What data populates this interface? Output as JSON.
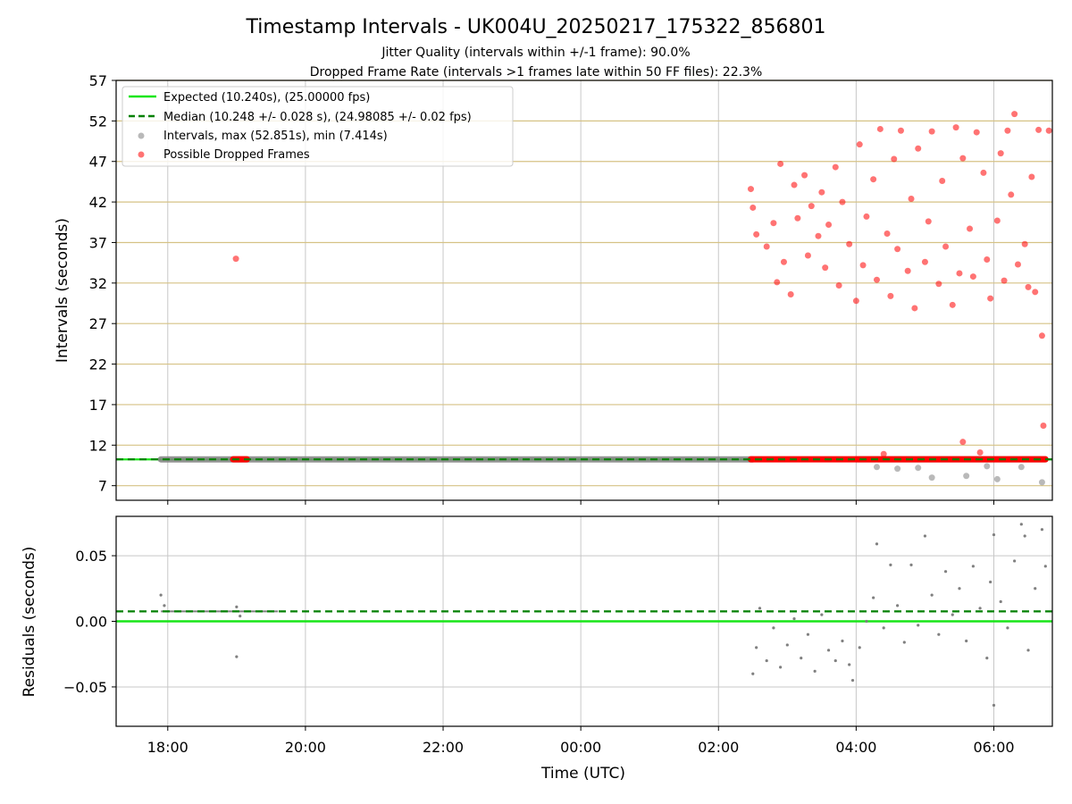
{
  "colors": {
    "expected": "#19e619",
    "median": "#008000",
    "intervals": "#808080",
    "dropped": "#ff0000",
    "hgrid_top": "#d6c285",
    "grid": "#c8c8c8"
  },
  "chart_data": [
    {
      "type": "scatter",
      "title": "Timestamp Intervals - UK004U_20250217_175322_856801",
      "subtitle_1": "Jitter Quality (intervals within +/-1 frame): 90.0%",
      "subtitle_2": "Dropped Frame Rate (intervals >1 frames late within 50 FF files): 22.3%",
      "xlabel": "",
      "ylabel": "Intervals (seconds)",
      "x_unit": "hours since 00:00 UTC of 2025-02-18 (negative = 2025-02-17)",
      "xlim": [
        -6.75,
        6.85
      ],
      "ylim": [
        5.2,
        57
      ],
      "yticks": [
        7,
        12,
        17,
        22,
        27,
        32,
        37,
        42,
        47,
        52,
        57
      ],
      "ytick_labels": [
        "7",
        "12",
        "17",
        "22",
        "27",
        "32",
        "37",
        "42",
        "47",
        "52",
        "57"
      ],
      "xticks": [
        -6,
        -4,
        -2,
        0,
        2,
        4,
        6
      ],
      "grid": true,
      "legend_position": "top-left",
      "legend": [
        "Expected (10.240s), (25.00000 fps)",
        "Median (10.248 +/- 0.028 s), (24.98085 +/- 0.02 fps)",
        "Intervals, max (52.851s), min (7.414s)",
        "Possible Dropped Frames"
      ],
      "lines": {
        "expected": 10.24,
        "median": 10.248
      },
      "series": [
        {
          "name": "Intervals, max (52.851s), min (7.414s)",
          "segments": [
            {
              "x_start": -6.1,
              "x_end": 2.5,
              "y": 10.248
            },
            {
              "x_start": 4.0,
              "x_end": 6.75,
              "y": 10.25
            }
          ],
          "points": [
            {
              "x": 4.3,
              "y": 9.3
            },
            {
              "x": 4.6,
              "y": 9.1
            },
            {
              "x": 4.9,
              "y": 9.2
            },
            {
              "x": 5.1,
              "y": 8.0
            },
            {
              "x": 5.6,
              "y": 8.2
            },
            {
              "x": 6.05,
              "y": 7.8
            },
            {
              "x": 6.7,
              "y": 7.414
            },
            {
              "x": 5.9,
              "y": 9.4
            },
            {
              "x": 6.4,
              "y": 9.3
            }
          ]
        },
        {
          "name": "Possible Dropped Frames",
          "points": [
            {
              "x": -5.01,
              "y": 35.0
            },
            {
              "x": 2.47,
              "y": 43.6
            },
            {
              "x": 2.5,
              "y": 41.3
            },
            {
              "x": 2.55,
              "y": 38.0
            },
            {
              "x": 2.7,
              "y": 36.5
            },
            {
              "x": 2.8,
              "y": 39.4
            },
            {
              "x": 2.85,
              "y": 32.1
            },
            {
              "x": 2.9,
              "y": 46.7
            },
            {
              "x": 2.95,
              "y": 34.6
            },
            {
              "x": 3.05,
              "y": 30.6
            },
            {
              "x": 3.1,
              "y": 44.1
            },
            {
              "x": 3.15,
              "y": 40.0
            },
            {
              "x": 3.25,
              "y": 45.3
            },
            {
              "x": 3.3,
              "y": 35.4
            },
            {
              "x": 3.35,
              "y": 41.5
            },
            {
              "x": 3.45,
              "y": 37.8
            },
            {
              "x": 3.5,
              "y": 43.2
            },
            {
              "x": 3.55,
              "y": 33.9
            },
            {
              "x": 3.6,
              "y": 39.2
            },
            {
              "x": 3.7,
              "y": 46.3
            },
            {
              "x": 3.75,
              "y": 31.7
            },
            {
              "x": 3.8,
              "y": 42.0
            },
            {
              "x": 3.9,
              "y": 36.8
            },
            {
              "x": 4.0,
              "y": 29.8
            },
            {
              "x": 4.05,
              "y": 49.1
            },
            {
              "x": 4.1,
              "y": 34.2
            },
            {
              "x": 4.15,
              "y": 40.2
            },
            {
              "x": 4.25,
              "y": 44.8
            },
            {
              "x": 4.3,
              "y": 32.4
            },
            {
              "x": 4.35,
              "y": 51.0
            },
            {
              "x": 4.45,
              "y": 38.1
            },
            {
              "x": 4.5,
              "y": 30.4
            },
            {
              "x": 4.55,
              "y": 47.3
            },
            {
              "x": 4.6,
              "y": 36.2
            },
            {
              "x": 4.65,
              "y": 50.8
            },
            {
              "x": 4.75,
              "y": 33.5
            },
            {
              "x": 4.8,
              "y": 42.4
            },
            {
              "x": 4.85,
              "y": 28.9
            },
            {
              "x": 4.9,
              "y": 48.6
            },
            {
              "x": 5.0,
              "y": 34.6
            },
            {
              "x": 5.05,
              "y": 39.6
            },
            {
              "x": 5.1,
              "y": 50.7
            },
            {
              "x": 5.2,
              "y": 31.9
            },
            {
              "x": 5.25,
              "y": 44.6
            },
            {
              "x": 5.3,
              "y": 36.5
            },
            {
              "x": 5.4,
              "y": 29.3
            },
            {
              "x": 5.45,
              "y": 51.2
            },
            {
              "x": 5.5,
              "y": 33.2
            },
            {
              "x": 5.55,
              "y": 47.4
            },
            {
              "x": 5.65,
              "y": 38.7
            },
            {
              "x": 5.7,
              "y": 32.8
            },
            {
              "x": 5.75,
              "y": 50.6
            },
            {
              "x": 5.85,
              "y": 45.6
            },
            {
              "x": 5.9,
              "y": 34.9
            },
            {
              "x": 5.95,
              "y": 30.1
            },
            {
              "x": 6.05,
              "y": 39.7
            },
            {
              "x": 6.1,
              "y": 48.0
            },
            {
              "x": 6.15,
              "y": 32.3
            },
            {
              "x": 6.2,
              "y": 50.8
            },
            {
              "x": 6.25,
              "y": 42.9
            },
            {
              "x": 6.3,
              "y": 52.851
            },
            {
              "x": 6.35,
              "y": 34.3
            },
            {
              "x": 6.45,
              "y": 36.8
            },
            {
              "x": 6.5,
              "y": 31.5
            },
            {
              "x": 6.55,
              "y": 45.1
            },
            {
              "x": 6.6,
              "y": 30.9
            },
            {
              "x": 6.65,
              "y": 50.9
            },
            {
              "x": 6.7,
              "y": 25.5
            },
            {
              "x": 6.72,
              "y": 14.4
            },
            {
              "x": 6.8,
              "y": 50.8
            },
            {
              "x": 5.55,
              "y": 12.4
            },
            {
              "x": 4.4,
              "y": 10.9
            },
            {
              "x": 5.8,
              "y": 11.1
            }
          ],
          "segments": [
            {
              "x_start": -5.05,
              "x_end": -4.85,
              "y": 10.25
            },
            {
              "x_start": 2.47,
              "x_end": 6.75,
              "y": 10.25
            }
          ]
        }
      ]
    },
    {
      "type": "scatter",
      "title": "",
      "xlabel": "Time (UTC)",
      "ylabel": "Residuals (seconds)",
      "xlim": [
        -6.75,
        6.85
      ],
      "ylim": [
        -0.08,
        0.08
      ],
      "yticks": [
        -0.05,
        0.0,
        0.05
      ],
      "ytick_labels": [
        "−0.05",
        "0.00",
        "0.05"
      ],
      "xticks": [
        -6,
        -4,
        -2,
        0,
        2,
        4,
        6
      ],
      "xtick_labels": [
        "18:00",
        "20:00",
        "22:00",
        "00:00",
        "02:00",
        "04:00",
        "06:00"
      ],
      "grid": true,
      "lines": {
        "expected": 0.0,
        "median": 0.0076
      },
      "series": [
        {
          "name": "Residuals",
          "segments": [
            {
              "x_start": -6.1,
              "x_end": -4.4,
              "y": 0.0076
            }
          ],
          "points": [
            {
              "x": -6.1,
              "y": 0.02
            },
            {
              "x": -6.05,
              "y": 0.012
            },
            {
              "x": -5.0,
              "y": -0.027
            },
            {
              "x": -4.95,
              "y": 0.004
            },
            {
              "x": -5.0,
              "y": 0.011
            },
            {
              "x": 2.5,
              "y": -0.04
            },
            {
              "x": 2.55,
              "y": -0.02
            },
            {
              "x": 2.6,
              "y": 0.01
            },
            {
              "x": 2.7,
              "y": -0.03
            },
            {
              "x": 2.8,
              "y": -0.005
            },
            {
              "x": 2.9,
              "y": -0.035
            },
            {
              "x": 3.0,
              "y": -0.018
            },
            {
              "x": 3.1,
              "y": 0.002
            },
            {
              "x": 3.2,
              "y": -0.028
            },
            {
              "x": 3.3,
              "y": -0.01
            },
            {
              "x": 3.4,
              "y": -0.038
            },
            {
              "x": 3.5,
              "y": 0.005
            },
            {
              "x": 3.6,
              "y": -0.022
            },
            {
              "x": 3.7,
              "y": -0.03
            },
            {
              "x": 3.8,
              "y": -0.015
            },
            {
              "x": 3.9,
              "y": -0.033
            },
            {
              "x": 3.95,
              "y": -0.045
            },
            {
              "x": 4.05,
              "y": -0.02
            },
            {
              "x": 4.15,
              "y": 0.0
            },
            {
              "x": 4.25,
              "y": 0.018
            },
            {
              "x": 4.3,
              "y": 0.059
            },
            {
              "x": 4.4,
              "y": -0.005
            },
            {
              "x": 4.5,
              "y": 0.043
            },
            {
              "x": 4.6,
              "y": 0.012
            },
            {
              "x": 4.7,
              "y": -0.016
            },
            {
              "x": 4.8,
              "y": 0.043
            },
            {
              "x": 4.9,
              "y": -0.003
            },
            {
              "x": 5.0,
              "y": 0.065
            },
            {
              "x": 5.1,
              "y": 0.02
            },
            {
              "x": 5.2,
              "y": -0.01
            },
            {
              "x": 5.3,
              "y": 0.038
            },
            {
              "x": 5.4,
              "y": 0.005
            },
            {
              "x": 5.5,
              "y": 0.025
            },
            {
              "x": 5.6,
              "y": -0.015
            },
            {
              "x": 5.7,
              "y": 0.042
            },
            {
              "x": 5.8,
              "y": 0.01
            },
            {
              "x": 5.9,
              "y": -0.028
            },
            {
              "x": 5.95,
              "y": 0.03
            },
            {
              "x": 6.0,
              "y": -0.064
            },
            {
              "x": 6.0,
              "y": 0.066
            },
            {
              "x": 6.1,
              "y": 0.015
            },
            {
              "x": 6.2,
              "y": -0.005
            },
            {
              "x": 6.3,
              "y": 0.046
            },
            {
              "x": 6.4,
              "y": 0.074
            },
            {
              "x": 6.45,
              "y": 0.065
            },
            {
              "x": 6.5,
              "y": -0.022
            },
            {
              "x": 6.6,
              "y": 0.025
            },
            {
              "x": 6.7,
              "y": 0.07
            },
            {
              "x": 6.75,
              "y": 0.042
            }
          ]
        }
      ]
    }
  ]
}
